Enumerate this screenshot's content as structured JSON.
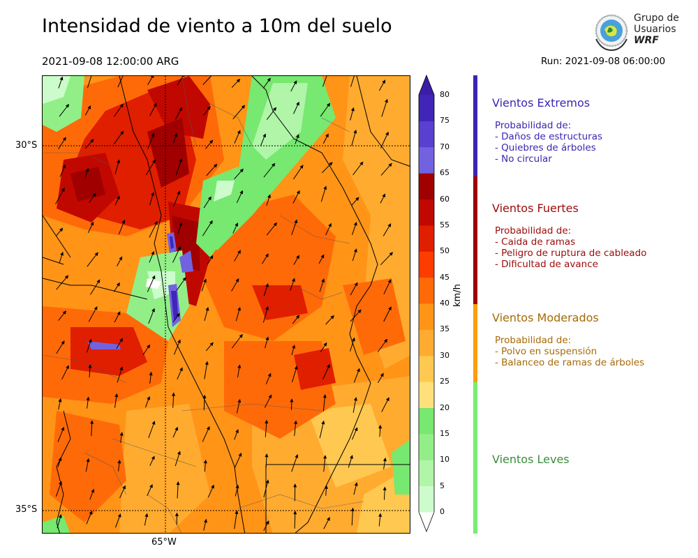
{
  "title": "Intensidad de viento a 10m del suelo",
  "valid_time": "2021-09-08 12:00:00 ARG",
  "run": "Run: 2021-09-08 06:00:00",
  "logo": {
    "line1": "Grupo de",
    "line2": "Usuarios",
    "line3": "WRF"
  },
  "map": {
    "lat_labels": [
      "30°S",
      "35°S"
    ],
    "lon_labels": [
      "65°W"
    ]
  },
  "colorbar": {
    "units": "km/h",
    "ticks": [
      "0",
      "5",
      "10",
      "15",
      "20",
      "25",
      "30",
      "35",
      "40",
      "45",
      "50",
      "55",
      "60",
      "65",
      "70",
      "75",
      "80"
    ],
    "colors": [
      "#ffffff",
      "#ccfccc",
      "#b0f5a8",
      "#92ef88",
      "#77e870",
      "#ffe07a",
      "#ffc850",
      "#ffab30",
      "#ff9417",
      "#ff6a08",
      "#ff3c00",
      "#e01e00",
      "#c00800",
      "#a00000",
      "#7262e0",
      "#5a40d0",
      "#4025b8"
    ],
    "top_color": "#3a1ea8"
  },
  "categories": [
    {
      "title": "Vientos Extremos",
      "color": "#3a26b0",
      "bar_color": "#3a26b0",
      "desc": [
        "Probabilidad de:",
        "- Daños de estructuras",
        "- Quiebres de árboles",
        "- No circular"
      ]
    },
    {
      "title": "Vientos Fuertes",
      "color": "#9b0a0a",
      "bar_color": "#a00000",
      "desc": [
        "Probabilidad de:",
        "- Caida de ramas",
        "- Peligro de ruptura de cableado",
        "- Dificultad de avance"
      ]
    },
    {
      "title": "Vientos Moderados",
      "color": "#a66a06",
      "bar_color": "#ff9e0a",
      "desc": [
        "Probabilidad de:",
        "- Polvo en suspensión",
        "- Balanceo de ramas de árboles"
      ]
    },
    {
      "title": "Vientos Leves",
      "color": "#3c8c3c",
      "bar_color": "#77ee72",
      "desc": []
    }
  ]
}
